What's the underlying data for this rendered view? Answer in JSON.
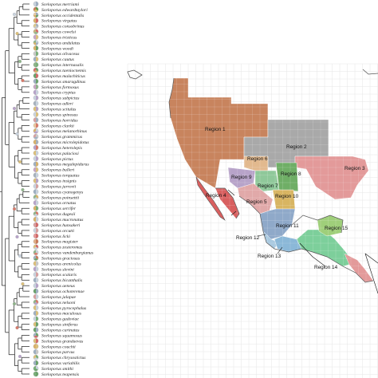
{
  "species": [
    {
      "name": "Sceloporus merriami",
      "pie": [
        "#9fb0c2",
        "#c9d3de"
      ]
    },
    {
      "name": "Sceloporus edwardtaylori",
      "pie": [
        "#5e9a4e",
        "#d8c36a",
        "#c97b5a"
      ]
    },
    {
      "name": "Sceloporus occidentalis",
      "pie": [
        "#9aa8b8",
        "#6da067",
        "#d9b26a",
        "#e8c9a1"
      ]
    },
    {
      "name": "Sceloporus virgatus",
      "pie": [
        "#d46a6a",
        "#d9b26a"
      ]
    },
    {
      "name": "Sceloporus consobrinus",
      "pie": [
        "#a7b2be",
        "#c9c9c9",
        "#dcc88c"
      ]
    },
    {
      "name": "Sceloporus cowelsi",
      "pie": [
        "#d86a6a",
        "#8fb58a",
        "#c9b37a"
      ]
    },
    {
      "name": "Sceloporus tristicus",
      "pie": [
        "#dcc07a",
        "#c8a6c4"
      ]
    },
    {
      "name": "Sceloporus undulatus",
      "pie": [
        "#c9d3de",
        "#9fb0c2",
        "#d9b26a",
        "#8fb58a"
      ]
    },
    {
      "name": "Sceloporus woodi",
      "pie": [
        "#6aa36b",
        "#d9b26a"
      ]
    },
    {
      "name": "Sceloporus olivaceus",
      "pie": [
        "#7bb07a",
        "#c9c9c9"
      ]
    },
    {
      "name": "Sceloporus cautus",
      "pie": [
        "#dcc07a",
        "#9fb0c2"
      ]
    },
    {
      "name": "Sceloporus internasalis",
      "pie": [
        "#7bb07a",
        "#8fb58a"
      ]
    },
    {
      "name": "Sceloporus taeniocnemis",
      "pie": [
        "#6aa36b",
        "#d9b26a",
        "#d46a6a"
      ]
    },
    {
      "name": "Sceloporus malachiticus",
      "pie": [
        "#d46a6a",
        "#6aa36b"
      ]
    },
    {
      "name": "Sceloporus smaragdinus",
      "pie": [
        "#6aa36b",
        "#9fb0c2"
      ]
    },
    {
      "name": "Sceloporus formosus",
      "pie": [
        "#8fb58a",
        "#c8a6c4"
      ]
    },
    {
      "name": "Sceloporus cryptus",
      "pie": [
        "#c9d3de",
        "#b7a3c9"
      ]
    },
    {
      "name": "Sceloporus subpictus",
      "pie": [
        "#b7a3c9",
        "#c9d3de"
      ]
    },
    {
      "name": "Sceloporus adleri",
      "pie": [
        "#c9d3de",
        "#a7b2be"
      ]
    },
    {
      "name": "Sceloporus scitulus",
      "pie": [
        "#b7a3c9",
        "#dcc07a"
      ]
    },
    {
      "name": "Sceloporus spinosus",
      "pie": [
        "#dcc07a",
        "#c9d3de"
      ]
    },
    {
      "name": "Sceloporus horridus",
      "pie": [
        "#9fb0c2",
        "#d8a0a0"
      ]
    },
    {
      "name": "Sceloporus clarkii",
      "pie": [
        "#d87a6a",
        "#e8c9a1"
      ]
    },
    {
      "name": "Sceloporus melanorhinus",
      "pie": [
        "#c9d3de",
        "#b7a3c9",
        "#d9b26a"
      ]
    },
    {
      "name": "Sceloporus grammicus",
      "pie": [
        "#c9c9c9",
        "#9fb0c2",
        "#d8a0a0"
      ]
    },
    {
      "name": "Sceloporus microlepidotus",
      "pie": [
        "#a7b2be",
        "#d9b26a"
      ]
    },
    {
      "name": "Sceloporus heterolepis",
      "pie": [
        "#d87a6a",
        "#b7a3c9"
      ]
    },
    {
      "name": "Sceloporus palaciosi",
      "pie": [
        "#c9d3de",
        "#dcc07a"
      ]
    },
    {
      "name": "Sceloporus pictus",
      "pie": [
        "#b7a3c9",
        "#c9d3de"
      ]
    },
    {
      "name": "Sceloporus megalepidurus",
      "pie": [
        "#d9b26a",
        "#9fb0c2"
      ]
    },
    {
      "name": "Sceloporus bulleri",
      "pie": [
        "#dcc07a",
        "#c8a6c4"
      ]
    },
    {
      "name": "Sceloporus torquatus",
      "pie": [
        "#c9d3de",
        "#a7b2be"
      ]
    },
    {
      "name": "Sceloporus insignis",
      "pie": [
        "#b7a3c9",
        "#dcc07a"
      ]
    },
    {
      "name": "Sceloporus jarrovii",
      "pie": [
        "#d8a0a0",
        "#c9d3de"
      ]
    },
    {
      "name": "Sceloporus cyanogenys",
      "pie": [
        "#c9d3de",
        "#9fb0c2"
      ]
    },
    {
      "name": "Sceloporus poinsettii",
      "pie": [
        "#d9b26a",
        "#c9d3de",
        "#8fb58a"
      ]
    },
    {
      "name": "Sceloporus ornatus",
      "pie": [
        "#c9d3de",
        "#b7a3c9"
      ]
    },
    {
      "name": "Sceloporus serrifer",
      "pie": [
        "#7bb07a",
        "#d9b26a"
      ]
    },
    {
      "name": "Sceloporus dugesii",
      "pie": [
        "#d87a6a",
        "#c9d3de",
        "#8fb58a"
      ]
    },
    {
      "name": "Sceloporus mucronatus",
      "pie": [
        "#c9d3de",
        "#d9b26a"
      ]
    },
    {
      "name": "Sceloporus hunsakeri",
      "pie": [
        "#d46a6a",
        "#d8a0a0"
      ]
    },
    {
      "name": "Sceloporus orcutti",
      "pie": [
        "#d8a0a0",
        "#c9d3de"
      ]
    },
    {
      "name": "Sceloporus licki",
      "pie": [
        "#d46a6a",
        "#e59a9a"
      ]
    },
    {
      "name": "Sceloporus magister",
      "pie": [
        "#c97b5a",
        "#e0b08a"
      ]
    },
    {
      "name": "Sceloporus zosteromus",
      "pie": [
        "#d46a6a",
        "#c9d3de",
        "#dcc07a"
      ]
    },
    {
      "name": "Sceloporus vandenburgianus",
      "pie": [
        "#c9d3de",
        "#d87a6a",
        "#8fb58a"
      ]
    },
    {
      "name": "Sceloporus graciosus",
      "pie": [
        "#c97b5a",
        "#6aa36b",
        "#9fb0c2"
      ]
    },
    {
      "name": "Sceloporus arenicolus",
      "pie": [
        "#c9c9c9",
        "#dcc07a"
      ]
    },
    {
      "name": "Sceloporus slevini",
      "pie": [
        "#c9d3de",
        "#b7a3c9"
      ]
    },
    {
      "name": "Sceloporus scalaris",
      "pie": [
        "#d8a0a0",
        "#c9d3de"
      ]
    },
    {
      "name": "Sceloporus bicanthalis",
      "pie": [
        "#c9d3de",
        "#9fb0c2"
      ]
    },
    {
      "name": "Sceloporus aeneus",
      "pie": [
        "#b7a3c9",
        "#c9d3de"
      ]
    },
    {
      "name": "Sceloporus ochoterenae",
      "pie": [
        "#9fb0c2",
        "#6aa36b"
      ]
    },
    {
      "name": "Sceloporus jalapae",
      "pie": [
        "#c9d3de",
        "#d8a0a0"
      ]
    },
    {
      "name": "Sceloporus nelsoni",
      "pie": [
        "#d87a6a",
        "#b7a3c9",
        "#8fb58a"
      ]
    },
    {
      "name": "Sceloporus pyrocephalus",
      "pie": [
        "#c9d3de",
        "#dcc07a"
      ]
    },
    {
      "name": "Sceloporus maculosus",
      "pie": [
        "#dcc07a",
        "#9fb0c2"
      ]
    },
    {
      "name": "Sceloporus gadoviae",
      "pie": [
        "#7bb07a",
        "#c9d3de"
      ]
    },
    {
      "name": "Sceloporus siniferus",
      "pie": [
        "#6aa36b",
        "#dcc07a"
      ]
    },
    {
      "name": "Sceloporus carinatus",
      "pie": [
        "#9fb0c2",
        "#6aa36b"
      ]
    },
    {
      "name": "Sceloporus squamosus",
      "pie": [
        "#6aa36b",
        "#d46a6a",
        "#9fb0c2"
      ]
    },
    {
      "name": "Sceloporus grandaevus",
      "pie": [
        "#d46a6a",
        "#dcc07a"
      ]
    },
    {
      "name": "Sceloporus couchii",
      "pie": [
        "#dcc07a",
        "#d9b26a"
      ]
    },
    {
      "name": "Sceloporus parvus",
      "pie": [
        "#c9c9c9",
        "#9fb0c2"
      ]
    },
    {
      "name": "Sceloporus chrysostictus",
      "pie": [
        "#7bb07a",
        "#c9d3de",
        "#dcc07a"
      ]
    },
    {
      "name": "Sceloporus variabilis",
      "pie": [
        "#6aa36b",
        "#9fb0c2"
      ]
    },
    {
      "name": "Sceloporus smithi",
      "pie": [
        "#c9d3de",
        "#6aa36b",
        "#7bb07a"
      ]
    },
    {
      "name": "Sceloporus teapensis",
      "pie": [
        "#6aa36b",
        "#7bb07a"
      ]
    }
  ],
  "regions": [
    {
      "label": "Region 1",
      "color": "#c8845e"
    },
    {
      "label": "Region 2",
      "color": "#a9a9a9"
    },
    {
      "label": "Region 3",
      "color": "#e39a9a"
    },
    {
      "label": "Region 4",
      "color": "#d85f5f"
    },
    {
      "label": "Region 5",
      "color": "#e1a9a9"
    },
    {
      "label": "Region 6",
      "color": "#e2b98e"
    },
    {
      "label": "Region 7",
      "color": "#8fc89a"
    },
    {
      "label": "Region 8",
      "color": "#6fae66"
    },
    {
      "label": "Region 9",
      "color": "#b7a3c9"
    },
    {
      "label": "Region 10",
      "color": "#d8b562"
    },
    {
      "label": "Region 11",
      "color": "#8fa9c9"
    },
    {
      "label": "Region 12",
      "color": "#a9c9e0"
    },
    {
      "label": "Region 13",
      "color": "#8bb8d8"
    },
    {
      "label": "Region 14",
      "color": "#7dcf9b"
    },
    {
      "label": "Region 15",
      "color": "#9fcf7a"
    }
  ],
  "colors": {
    "tree_line": "#1a1a1a",
    "coast": "#555555",
    "grid": "#e6e6e6",
    "land": "#f3f3f3"
  }
}
